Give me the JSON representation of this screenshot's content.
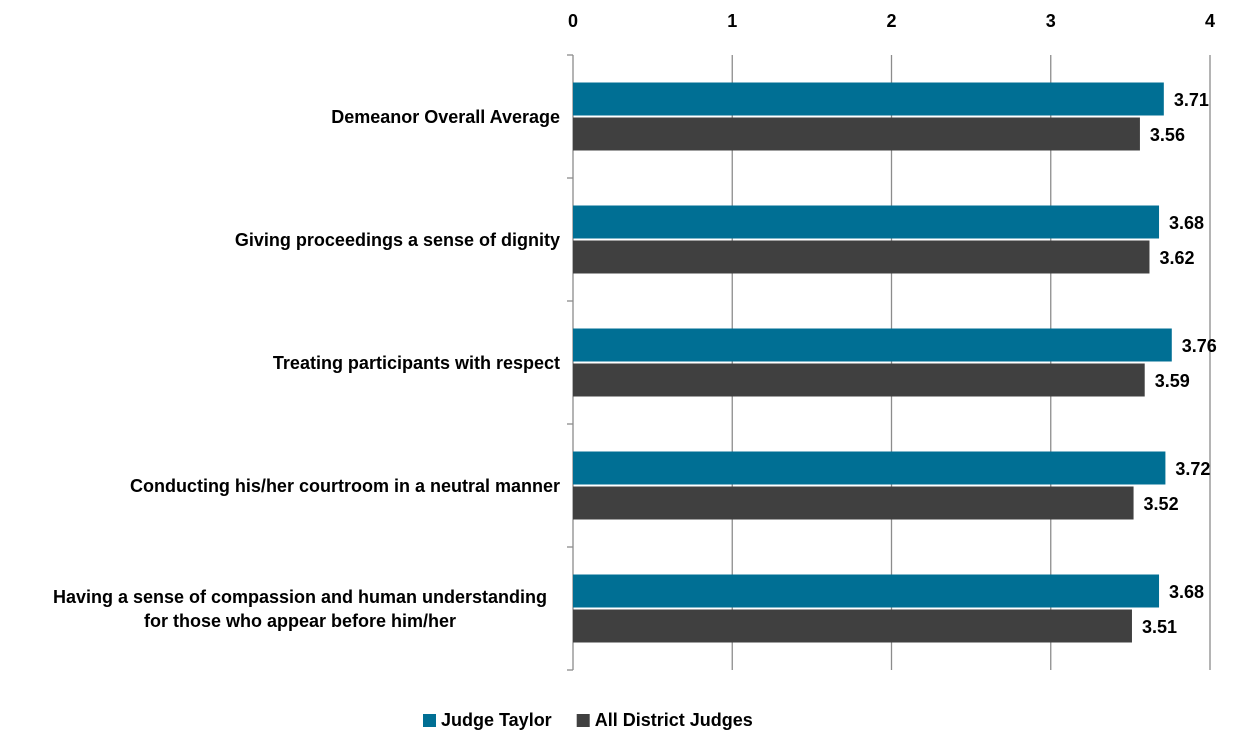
{
  "chart_data": {
    "type": "bar",
    "orientation": "horizontal",
    "categories": [
      "Demeanor Overall Average",
      "Giving proceedings a sense of dignity",
      "Treating participants with respect",
      "Conducting his/her courtroom in a neutral manner",
      "Having a sense of compassion and human understanding for those who appear before him/her"
    ],
    "series": [
      {
        "name": "Judge Taylor",
        "color": "#006f94",
        "values": [
          3.71,
          3.68,
          3.76,
          3.72,
          3.68
        ]
      },
      {
        "name": "All District Judges",
        "color": "#404040",
        "values": [
          3.56,
          3.62,
          3.59,
          3.52,
          3.51
        ]
      }
    ],
    "xlim": [
      0,
      4
    ],
    "xticks": [
      0,
      1,
      2,
      3,
      4
    ],
    "grid": true,
    "legend": "bottom"
  }
}
